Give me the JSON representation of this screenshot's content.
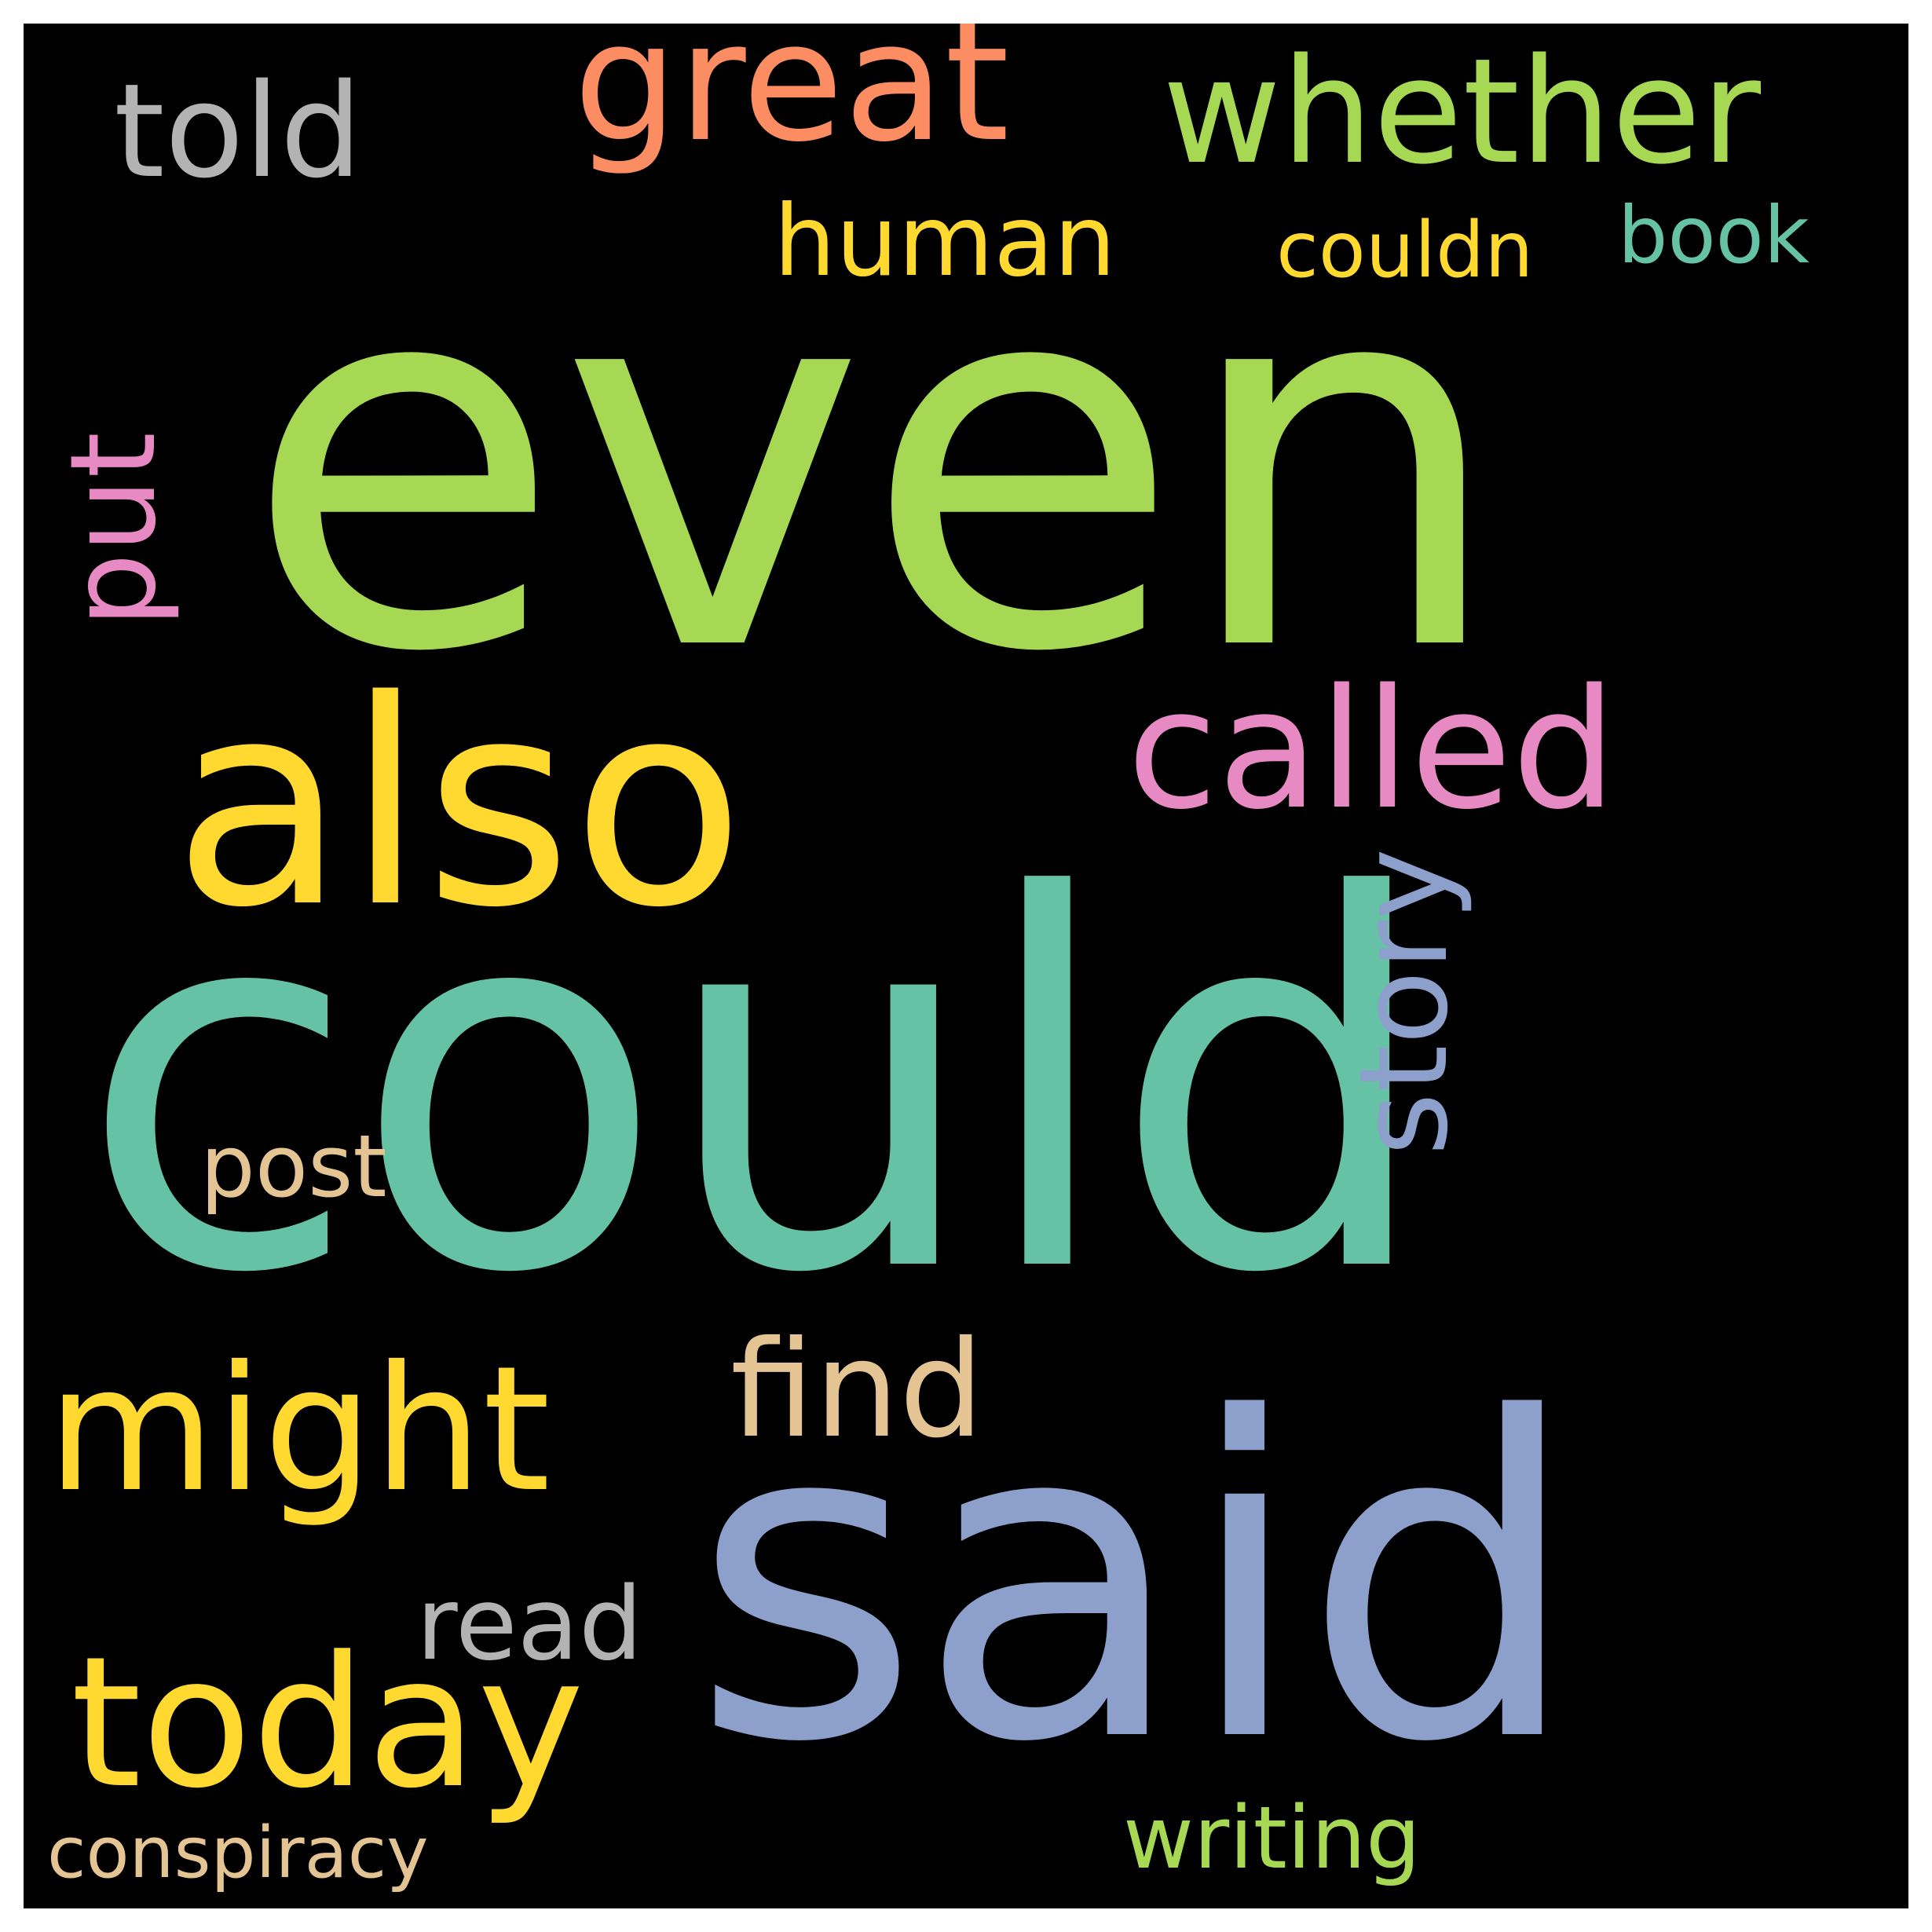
{
  "background": "#000000",
  "words": {
    "even": {
      "text": "even",
      "color": "#a6d854"
    },
    "could": {
      "text": "could",
      "color": "#66c2a5"
    },
    "said": {
      "text": "said",
      "color": "#8da0cb"
    },
    "also": {
      "text": "also",
      "color": "#ffd92f"
    },
    "great": {
      "text": "great",
      "color": "#fc8d62"
    },
    "whether": {
      "text": "whether",
      "color": "#a6d854"
    },
    "told": {
      "text": "told",
      "color": "#b3b3b3"
    },
    "human": {
      "text": "human",
      "color": "#ffd92f"
    },
    "couldn": {
      "text": "couldn",
      "color": "#ffd92f"
    },
    "book": {
      "text": "book",
      "color": "#66c2a5"
    },
    "called": {
      "text": "called",
      "color": "#e78ac3"
    },
    "put": {
      "text": "put",
      "color": "#e78ac3"
    },
    "story": {
      "text": "story",
      "color": "#8da0cb"
    },
    "post": {
      "text": "post",
      "color": "#e5c494"
    },
    "find": {
      "text": "find",
      "color": "#e5c494"
    },
    "might": {
      "text": "might",
      "color": "#ffd92f"
    },
    "read": {
      "text": "read",
      "color": "#b3b3b3"
    },
    "today": {
      "text": "today",
      "color": "#ffd92f"
    },
    "conspiracy": {
      "text": "conspiracy",
      "color": "#e5c494"
    },
    "writing": {
      "text": "writing",
      "color": "#a6d854"
    }
  }
}
